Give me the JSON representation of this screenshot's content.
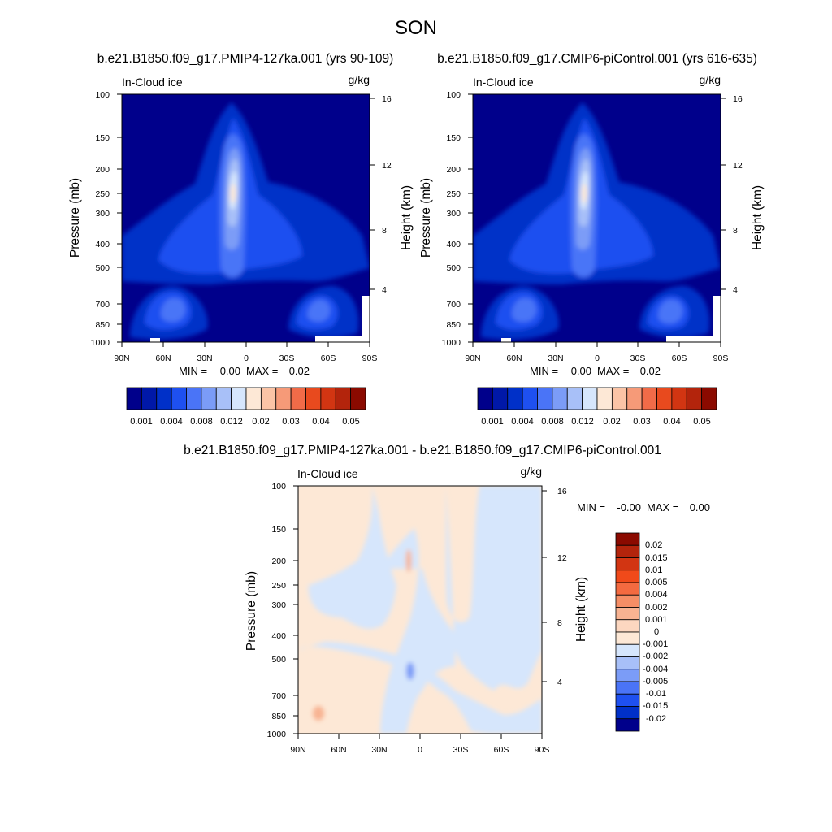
{
  "figure": {
    "title": "SON"
  },
  "chart_data": [
    {
      "type": "heatmap",
      "title": "b.e21.B1850.f09_g17.PMIP4-127ka.001 (yrs 90-109)",
      "variable": "In-Cloud ice",
      "units": "g/kg",
      "ylabel": "Pressure (mb)",
      "ylabel_right": "Height (km)",
      "x_ticks": [
        "90N",
        "60N",
        "30N",
        "0",
        "30S",
        "60S",
        "90S"
      ],
      "x_range": [
        90,
        -90
      ],
      "y_ticks": [
        "100",
        "150",
        "200",
        "250",
        "300",
        "400",
        "500",
        "700",
        "850",
        "1000"
      ],
      "y_range": [
        100,
        1000
      ],
      "y_scale": "log",
      "y_ticks_right": [
        "16",
        "12",
        "8",
        "4"
      ],
      "stats": {
        "min_label": "MIN =",
        "min": "0.00",
        "max_label": "MAX =",
        "max": "0.02"
      },
      "colorbar": {
        "orientation": "horizontal",
        "labels": [
          "0.001",
          "0.004",
          "0.008",
          "0.012",
          "0.02",
          "0.03",
          "0.04",
          "0.05"
        ],
        "colors": [
          "#00008b",
          "#0018a8",
          "#0030c8",
          "#1e50f0",
          "#4a74f7",
          "#7b9cf7",
          "#a8c0f8",
          "#d6e6fc",
          "#fde8d6",
          "#fbc4a6",
          "#f69a78",
          "#f16b48",
          "#e84a1e",
          "#d23512",
          "#b3240c",
          "#8b0a00"
        ]
      }
    },
    {
      "type": "heatmap",
      "title": "b.e21.B1850.f09_g17.CMIP6-piControl.001 (yrs 616-635)",
      "variable": "In-Cloud ice",
      "units": "g/kg",
      "ylabel": "Pressure (mb)",
      "ylabel_right": "Height (km)",
      "x_ticks": [
        "90N",
        "60N",
        "30N",
        "0",
        "30S",
        "60S",
        "90S"
      ],
      "x_range": [
        90,
        -90
      ],
      "y_ticks": [
        "100",
        "150",
        "200",
        "250",
        "300",
        "400",
        "500",
        "700",
        "850",
        "1000"
      ],
      "y_range": [
        100,
        1000
      ],
      "y_scale": "log",
      "y_ticks_right": [
        "16",
        "12",
        "8",
        "4"
      ],
      "stats": {
        "min_label": "MIN =",
        "min": "0.00",
        "max_label": "MAX =",
        "max": "0.02"
      },
      "colorbar": {
        "orientation": "horizontal",
        "labels": [
          "0.001",
          "0.004",
          "0.008",
          "0.012",
          "0.02",
          "0.03",
          "0.04",
          "0.05"
        ],
        "colors": [
          "#00008b",
          "#0018a8",
          "#0030c8",
          "#1e50f0",
          "#4a74f7",
          "#7b9cf7",
          "#a8c0f8",
          "#d6e6fc",
          "#fde8d6",
          "#fbc4a6",
          "#f69a78",
          "#f16b48",
          "#e84a1e",
          "#d23512",
          "#b3240c",
          "#8b0a00"
        ]
      }
    },
    {
      "type": "heatmap",
      "title": "b.e21.B1850.f09_g17.PMIP4-127ka.001 - b.e21.B1850.f09_g17.CMIP6-piControl.001",
      "variable": "In-Cloud ice",
      "units": "g/kg",
      "ylabel": "Pressure (mb)",
      "ylabel_right": "Height (km)",
      "x_ticks": [
        "90N",
        "60N",
        "30N",
        "0",
        "30S",
        "60S",
        "90S"
      ],
      "x_range": [
        90,
        -90
      ],
      "y_ticks": [
        "100",
        "150",
        "200",
        "250",
        "300",
        "400",
        "500",
        "700",
        "850",
        "1000"
      ],
      "y_range": [
        100,
        1000
      ],
      "y_scale": "log",
      "y_ticks_right": [
        "16",
        "12",
        "8",
        "4"
      ],
      "stats": {
        "min_label": "MIN =",
        "min": "-0.00",
        "max_label": "MAX =",
        "max": "0.00"
      },
      "colorbar": {
        "orientation": "vertical",
        "labels": [
          "0.02",
          "0.015",
          "0.01",
          "0.005",
          "0.004",
          "0.002",
          "0.001",
          "0",
          "-0.001",
          "-0.002",
          "-0.004",
          "-0.005",
          "-0.01",
          "-0.015",
          "-0.02"
        ],
        "colors": [
          "#8b0a00",
          "#b3240c",
          "#d23512",
          "#f04a1a",
          "#f46a40",
          "#f58e66",
          "#f8b392",
          "#fcd7c0",
          "#fde8d6",
          "#d6e6fc",
          "#a8c0f8",
          "#7b9cf7",
          "#4a74f7",
          "#1e50f0",
          "#0030c8",
          "#00008b"
        ]
      }
    }
  ]
}
